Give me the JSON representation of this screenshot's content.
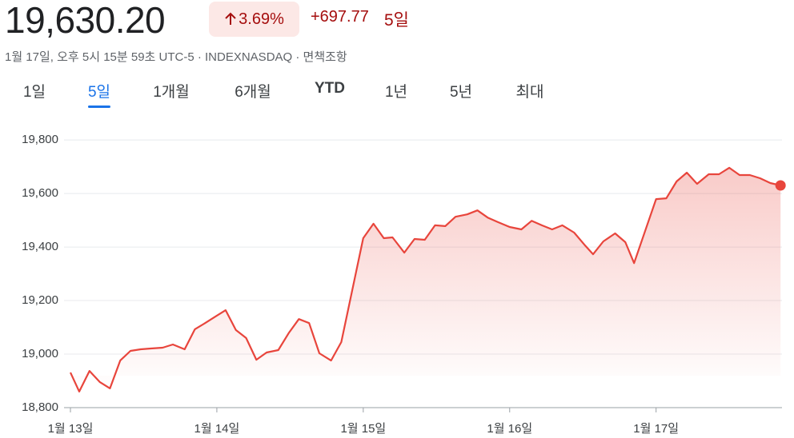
{
  "header": {
    "price": "19,630.20",
    "change_percent": "3.69%",
    "change": "+697.77",
    "period": "5일",
    "subtitle": "1월 17일, 오후 5시 15분 59초 UTC-5 · INDEXNASDAQ · 면책조항"
  },
  "tabs": {
    "items": [
      "1일",
      "5일",
      "1개월",
      "6개월",
      "YTD",
      "1년",
      "5년",
      "최대"
    ],
    "selected": 1
  },
  "chart_data": {
    "type": "line",
    "x": [
      13.0,
      13.06,
      13.13,
      13.2,
      13.27,
      13.34,
      13.41,
      13.48,
      13.55,
      13.63,
      13.7,
      13.78,
      13.85,
      13.92,
      13.99,
      14.06,
      14.13,
      14.2,
      14.27,
      14.34,
      14.42,
      14.49,
      14.56,
      14.63,
      14.7,
      14.78,
      14.85,
      15.0,
      15.07,
      15.14,
      15.2,
      15.28,
      15.35,
      15.42,
      15.49,
      15.56,
      15.63,
      15.71,
      15.78,
      15.85,
      15.92,
      16.0,
      16.08,
      16.15,
      16.22,
      16.29,
      16.36,
      16.44,
      16.51,
      16.57,
      16.64,
      16.72,
      16.79,
      16.85,
      17.0,
      17.07,
      17.14,
      17.21,
      17.28,
      17.36,
      17.43,
      17.5,
      17.57,
      17.64,
      17.71,
      17.78,
      17.85
    ],
    "series": [
      {
        "color": "#e8453c",
        "values": [
          18931,
          18860,
          18937,
          18896,
          18872,
          18976,
          19012,
          19018,
          19021,
          19024,
          19036,
          19018,
          19093,
          19116,
          19140,
          19164,
          19090,
          19060,
          18979,
          19006,
          19015,
          19078,
          19131,
          19116,
          19003,
          18976,
          19045,
          19433,
          19487,
          19433,
          19436,
          19379,
          19430,
          19427,
          19481,
          19478,
          19513,
          19522,
          19537,
          19510,
          19493,
          19475,
          19466,
          19498,
          19481,
          19466,
          19481,
          19454,
          19409,
          19373,
          19421,
          19451,
          19418,
          19340,
          19579,
          19582,
          19645,
          19678,
          19636,
          19672,
          19672,
          19696,
          19669,
          19669,
          19657,
          19639,
          19630.2
        ]
      }
    ],
    "xlim": [
      13,
      17.86
    ],
    "xticks": [
      {
        "value": 13,
        "label": "1월 13일"
      },
      {
        "value": 14,
        "label": "1월 14일"
      },
      {
        "value": 15,
        "label": "1월 15일"
      },
      {
        "value": 16,
        "label": "1월 16일"
      },
      {
        "value": 17,
        "label": "1월 17일"
      }
    ],
    "ylim": [
      18800,
      19875
    ],
    "yticks": [
      {
        "value": 18800,
        "label": "18,800"
      },
      {
        "value": 19000,
        "label": "19,000"
      },
      {
        "value": 19200,
        "label": "19,200"
      },
      {
        "value": 19400,
        "label": "19,400"
      },
      {
        "value": 19600,
        "label": "19,600"
      },
      {
        "value": 19800,
        "label": "19,800"
      }
    ],
    "grid": true
  }
}
